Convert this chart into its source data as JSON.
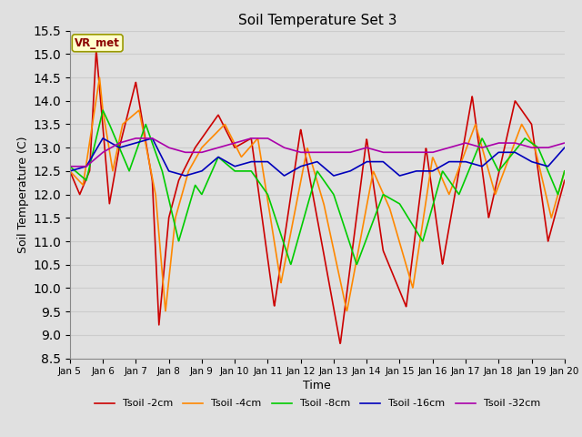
{
  "title": "Soil Temperature Set 3",
  "xlabel": "Time",
  "ylabel": "Soil Temperature (C)",
  "ylim": [
    8.5,
    15.5
  ],
  "yticks": [
    8.5,
    9.0,
    9.5,
    10.0,
    10.5,
    11.0,
    11.5,
    12.0,
    12.5,
    13.0,
    13.5,
    14.0,
    14.5,
    15.0,
    15.5
  ],
  "series": {
    "Tsoil -2cm": {
      "color": "#cc0000",
      "lw": 1.2
    },
    "Tsoil -4cm": {
      "color": "#ff8800",
      "lw": 1.2
    },
    "Tsoil -8cm": {
      "color": "#00cc00",
      "lw": 1.2
    },
    "Tsoil -16cm": {
      "color": "#0000bb",
      "lw": 1.2
    },
    "Tsoil -32cm": {
      "color": "#aa00aa",
      "lw": 1.2
    }
  },
  "xtick_labels": [
    "Jan 5",
    "Jan 6",
    "Jan 7",
    "Jan 8",
    "Jan 9",
    "Jan 10",
    "Jan 11",
    "Jan 12",
    "Jan 13",
    "Jan 14",
    "Jan 15",
    "Jan 16",
    "Jan 17",
    "Jan 18",
    "Jan 19",
    "Jan 20"
  ],
  "grid_color": "#cccccc",
  "bg_color": "#e0e0e0",
  "plot_bg": "#e0e0e0",
  "annotation_text": "VR_met",
  "annotation_bg": "#ffffcc",
  "annotation_border": "#999900"
}
